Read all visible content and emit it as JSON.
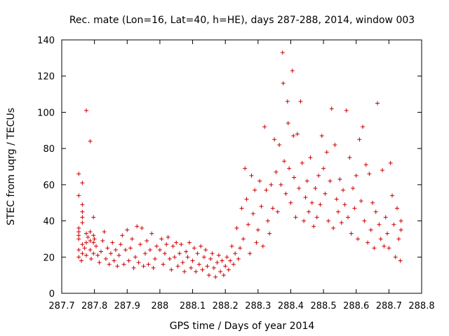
{
  "chart_data": {
    "type": "scatter",
    "title": "Rec. mate (Lon=16, Lat=40, h=HE), days 287-288, 2014, window 003",
    "xlabel": "GPS time / Days of year 2014",
    "ylabel": "STEC from uqrg / TECUs",
    "xlim": [
      287.7,
      288.8
    ],
    "ylim": [
      0,
      140
    ],
    "x_ticks": [
      "287.7",
      "287.8",
      "287.9",
      "288",
      "288.1",
      "288.2",
      "288.3",
      "288.4",
      "288.5",
      "288.6",
      "288.7",
      "288.8"
    ],
    "y_ticks": [
      "0",
      "20",
      "40",
      "60",
      "80",
      "100",
      "120",
      "140"
    ],
    "grid": false,
    "legend": "none",
    "marker": "+",
    "color": "#cc0000",
    "series": [
      {
        "points": [
          [
            287.752,
            66
          ],
          [
            287.752,
            54
          ],
          [
            287.752,
            36
          ],
          [
            287.752,
            34
          ],
          [
            287.752,
            32
          ],
          [
            287.752,
            30
          ],
          [
            287.752,
            24
          ],
          [
            287.752,
            20
          ],
          [
            287.763,
            61
          ],
          [
            287.763,
            49
          ],
          [
            287.763,
            45
          ],
          [
            287.763,
            42
          ],
          [
            287.763,
            39
          ],
          [
            287.763,
            27
          ],
          [
            287.763,
            22
          ],
          [
            287.775,
            101
          ],
          [
            287.775,
            33
          ],
          [
            287.775,
            28
          ],
          [
            287.775,
            21
          ],
          [
            287.787,
            84
          ],
          [
            287.787,
            34
          ],
          [
            287.787,
            29
          ],
          [
            287.787,
            24
          ],
          [
            287.797,
            42
          ],
          [
            287.797,
            32
          ],
          [
            287.797,
            28
          ],
          [
            287.797,
            22
          ],
          [
            287.76,
            18
          ],
          [
            287.77,
            25
          ],
          [
            287.78,
            31
          ],
          [
            287.79,
            19
          ],
          [
            287.8,
            30
          ],
          [
            287.805,
            26
          ],
          [
            287.81,
            21
          ],
          [
            287.815,
            17
          ],
          [
            287.82,
            23
          ],
          [
            287.825,
            29
          ],
          [
            287.83,
            34
          ],
          [
            287.835,
            19
          ],
          [
            287.84,
            25
          ],
          [
            287.845,
            16
          ],
          [
            287.85,
            22
          ],
          [
            287.855,
            28
          ],
          [
            287.86,
            18
          ],
          [
            287.865,
            24
          ],
          [
            287.87,
            15
          ],
          [
            287.875,
            21
          ],
          [
            287.88,
            27
          ],
          [
            287.885,
            32
          ],
          [
            287.89,
            16
          ],
          [
            287.895,
            24
          ],
          [
            287.9,
            35
          ],
          [
            287.905,
            18
          ],
          [
            287.91,
            25
          ],
          [
            287.915,
            30
          ],
          [
            287.92,
            14
          ],
          [
            287.925,
            20
          ],
          [
            287.93,
            37
          ],
          [
            287.935,
            17
          ],
          [
            287.94,
            27
          ],
          [
            287.945,
            36
          ],
          [
            287.95,
            15
          ],
          [
            287.955,
            22
          ],
          [
            287.96,
            29
          ],
          [
            287.965,
            16
          ],
          [
            287.97,
            24
          ],
          [
            287.975,
            33
          ],
          [
            287.98,
            14
          ],
          [
            287.985,
            19
          ],
          [
            287.99,
            26
          ],
          [
            288.0,
            24
          ],
          [
            288.005,
            30
          ],
          [
            288.01,
            16
          ],
          [
            288.015,
            22
          ],
          [
            288.02,
            27
          ],
          [
            288.025,
            31
          ],
          [
            288.03,
            19
          ],
          [
            288.035,
            13
          ],
          [
            288.04,
            26
          ],
          [
            288.045,
            20
          ],
          [
            288.05,
            28
          ],
          [
            288.055,
            15
          ],
          [
            288.06,
            22
          ],
          [
            288.065,
            27
          ],
          [
            288.07,
            17
          ],
          [
            288.075,
            12
          ],
          [
            288.08,
            23
          ],
          [
            288.085,
            20
          ],
          [
            288.09,
            28
          ],
          [
            288.095,
            14
          ],
          [
            288.1,
            18
          ],
          [
            288.105,
            25
          ],
          [
            288.11,
            12
          ],
          [
            288.115,
            22
          ],
          [
            288.12,
            16
          ],
          [
            288.125,
            26
          ],
          [
            288.13,
            13
          ],
          [
            288.135,
            20
          ],
          [
            288.14,
            24
          ],
          [
            288.145,
            15
          ],
          [
            288.15,
            10
          ],
          [
            288.155,
            19
          ],
          [
            288.16,
            22
          ],
          [
            288.165,
            14
          ],
          [
            288.17,
            9
          ],
          [
            288.175,
            17
          ],
          [
            288.18,
            21
          ],
          [
            288.185,
            12
          ],
          [
            288.19,
            18
          ],
          [
            288.195,
            10
          ],
          [
            288.2,
            15
          ],
          [
            288.205,
            20
          ],
          [
            288.21,
            13
          ],
          [
            288.215,
            18
          ],
          [
            288.22,
            26
          ],
          [
            288.225,
            16
          ],
          [
            288.23,
            22
          ],
          [
            288.235,
            36
          ],
          [
            288.24,
            19
          ],
          [
            288.245,
            25
          ],
          [
            288.25,
            47
          ],
          [
            288.255,
            30
          ],
          [
            288.26,
            69
          ],
          [
            288.265,
            52
          ],
          [
            288.27,
            38
          ],
          [
            288.275,
            22
          ],
          [
            288.28,
            65
          ],
          [
            288.285,
            44
          ],
          [
            288.29,
            57
          ],
          [
            288.295,
            28
          ],
          [
            288.3,
            35
          ],
          [
            288.305,
            62
          ],
          [
            288.31,
            48
          ],
          [
            288.315,
            26
          ],
          [
            288.32,
            92
          ],
          [
            288.325,
            57
          ],
          [
            288.33,
            40
          ],
          [
            288.335,
            33
          ],
          [
            288.34,
            60
          ],
          [
            288.345,
            47
          ],
          [
            288.35,
            85
          ],
          [
            288.355,
            67
          ],
          [
            288.36,
            45
          ],
          [
            288.365,
            82
          ],
          [
            288.37,
            60
          ],
          [
            288.375,
            133
          ],
          [
            288.377,
            116
          ],
          [
            288.38,
            73
          ],
          [
            288.385,
            55
          ],
          [
            288.39,
            106
          ],
          [
            288.392,
            94
          ],
          [
            288.395,
            69
          ],
          [
            288.4,
            50
          ],
          [
            288.405,
            123
          ],
          [
            288.408,
            87
          ],
          [
            288.41,
            64
          ],
          [
            288.415,
            42
          ],
          [
            288.42,
            88
          ],
          [
            288.425,
            58
          ],
          [
            288.43,
            106
          ],
          [
            288.435,
            72
          ],
          [
            288.44,
            40
          ],
          [
            288.445,
            53
          ],
          [
            288.45,
            62
          ],
          [
            288.455,
            45
          ],
          [
            288.46,
            75
          ],
          [
            288.465,
            50
          ],
          [
            288.47,
            37
          ],
          [
            288.475,
            58
          ],
          [
            288.48,
            42
          ],
          [
            288.485,
            65
          ],
          [
            288.49,
            49
          ],
          [
            288.495,
            87
          ],
          [
            288.5,
            69
          ],
          [
            288.505,
            55
          ],
          [
            288.51,
            78
          ],
          [
            288.515,
            40
          ],
          [
            288.52,
            62
          ],
          [
            288.525,
            102
          ],
          [
            288.53,
            36
          ],
          [
            288.535,
            82
          ],
          [
            288.54,
            52
          ],
          [
            288.545,
            45
          ],
          [
            288.55,
            63
          ],
          [
            288.555,
            39
          ],
          [
            288.56,
            57
          ],
          [
            288.565,
            49
          ],
          [
            288.57,
            101
          ],
          [
            288.575,
            42
          ],
          [
            288.58,
            75
          ],
          [
            288.585,
            33
          ],
          [
            288.59,
            58
          ],
          [
            288.595,
            47
          ],
          [
            288.6,
            65
          ],
          [
            288.605,
            30
          ],
          [
            288.61,
            85
          ],
          [
            288.615,
            51
          ],
          [
            288.62,
            92
          ],
          [
            288.625,
            40
          ],
          [
            288.63,
            71
          ],
          [
            288.635,
            28
          ],
          [
            288.64,
            66
          ],
          [
            288.645,
            35
          ],
          [
            288.65,
            50
          ],
          [
            288.655,
            25
          ],
          [
            288.66,
            45
          ],
          [
            288.665,
            105
          ],
          [
            288.67,
            38
          ],
          [
            288.675,
            30
          ],
          [
            288.68,
            68
          ],
          [
            288.685,
            26
          ],
          [
            288.69,
            42
          ],
          [
            288.695,
            33
          ],
          [
            288.7,
            25
          ],
          [
            288.705,
            72
          ],
          [
            288.71,
            54
          ],
          [
            288.715,
            38
          ],
          [
            288.72,
            20
          ],
          [
            288.725,
            47
          ],
          [
            288.73,
            30
          ],
          [
            288.735,
            18
          ],
          [
            288.737,
            40
          ],
          [
            288.737,
            35
          ]
        ]
      }
    ]
  }
}
